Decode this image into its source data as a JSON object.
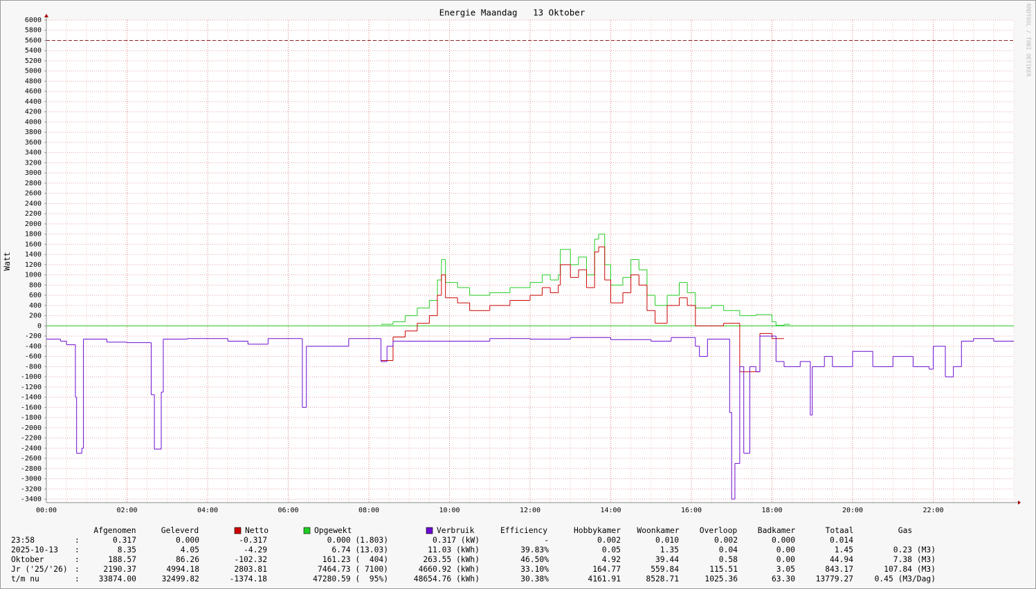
{
  "chart_data": {
    "type": "step",
    "title": "Energie Maandag   13 Oktober",
    "y_label": "Watt",
    "watermark": "RRDTOOL / TOBI OETIKER",
    "xlim": [
      0,
      24
    ],
    "xticks": [
      {
        "value": 0,
        "label": "00:00"
      },
      {
        "value": 2,
        "label": "02:00"
      },
      {
        "value": 4,
        "label": "04:00"
      },
      {
        "value": 6,
        "label": "06:00"
      },
      {
        "value": 8,
        "label": "08:00"
      },
      {
        "value": 10,
        "label": "10:00"
      },
      {
        "value": 12,
        "label": "12:00"
      },
      {
        "value": 14,
        "label": "14:00"
      },
      {
        "value": 16,
        "label": "16:00"
      },
      {
        "value": 18,
        "label": "18:00"
      },
      {
        "value": 20,
        "label": "20:00"
      },
      {
        "value": 22,
        "label": "22:00"
      }
    ],
    "ylim": [
      -3400,
      6000
    ],
    "yticks": [
      -3400,
      -3200,
      -3000,
      -2800,
      -2600,
      -2400,
      -2200,
      -2000,
      -1800,
      -1600,
      -1400,
      -1200,
      -1000,
      -800,
      -600,
      -400,
      -200,
      0,
      200,
      400,
      600,
      800,
      1000,
      1200,
      1400,
      1600,
      1800,
      2000,
      2200,
      2400,
      2600,
      2800,
      3000,
      3200,
      3400,
      3600,
      3800,
      4000,
      4200,
      4400,
      4600,
      4800,
      5000,
      5200,
      5400,
      5600,
      5800,
      6000
    ],
    "grid": true,
    "limit_line": 5600,
    "series": [
      {
        "name": "Netto",
        "color": "#cc0000",
        "x": [
          8.3,
          8.6,
          8.9,
          9.2,
          9.5,
          9.7,
          9.8,
          9.9,
          10.2,
          10.5,
          11,
          11.5,
          12,
          12.3,
          12.5,
          12.7,
          12.75,
          13.0,
          13.2,
          13.4,
          13.6,
          13.7,
          13.85,
          14.0,
          14.3,
          14.5,
          14.7,
          14.9,
          15.1,
          15.4,
          15.7,
          15.9,
          16.1,
          16.5,
          16.8,
          17.2,
          17.6,
          17.7,
          18.0,
          18.3
        ],
        "values": [
          -680,
          -220,
          -100,
          50,
          200,
          600,
          1000,
          550,
          450,
          300,
          400,
          500,
          600,
          750,
          650,
          800,
          1200,
          950,
          1100,
          750,
          1450,
          1550,
          900,
          450,
          650,
          1000,
          800,
          300,
          50,
          400,
          550,
          400,
          0,
          0,
          50,
          -900,
          -900,
          -150,
          -250,
          null
        ]
      },
      {
        "name": "Opgewekt",
        "color": "#22cc22",
        "x": [
          8.3,
          8.6,
          8.9,
          9.2,
          9.5,
          9.7,
          9.8,
          9.9,
          10.2,
          10.5,
          11,
          11.5,
          12,
          12.3,
          12.5,
          12.7,
          12.75,
          13.0,
          13.2,
          13.4,
          13.6,
          13.7,
          13.85,
          14.0,
          14.3,
          14.5,
          14.7,
          14.9,
          15.1,
          15.4,
          15.7,
          15.9,
          16.1,
          16.5,
          16.8,
          17.2,
          17.6,
          18.0,
          18.1,
          18.3,
          18.45
        ],
        "values": [
          30,
          80,
          200,
          350,
          500,
          900,
          1300,
          850,
          750,
          600,
          650,
          750,
          850,
          1000,
          900,
          1000,
          1500,
          1200,
          1350,
          1000,
          1700,
          1800,
          1200,
          800,
          950,
          1300,
          1100,
          600,
          400,
          600,
          850,
          650,
          350,
          400,
          300,
          200,
          220,
          80,
          10,
          30,
          null
        ]
      },
      {
        "name": "Verbruik",
        "color": "#6a0ad0",
        "x": [
          0,
          0.35,
          0.5,
          0.72,
          0.75,
          0.88,
          0.92,
          1.5,
          2.0,
          2.6,
          2.68,
          2.85,
          2.9,
          3.5,
          4.5,
          5.0,
          5.5,
          6.3,
          6.35,
          6.45,
          7.0,
          7.5,
          8.3,
          8.45,
          8.6,
          10,
          11,
          12,
          13,
          14,
          15,
          15.5,
          16.1,
          16.2,
          16.4,
          16.95,
          17.0,
          17.08,
          17.2,
          17.3,
          17.45,
          17.6,
          17.7,
          18.1,
          18.3,
          18.7,
          18.95,
          19.0,
          19.3,
          19.5,
          20,
          20.5,
          21,
          21.5,
          21.9,
          22.0,
          22.3,
          22.5,
          22.7,
          23,
          23.5
        ],
        "values": [
          -260,
          -300,
          -370,
          -1400,
          -2500,
          -2400,
          -260,
          -320,
          -330,
          -1350,
          -2420,
          -1300,
          -260,
          -250,
          -300,
          -360,
          -250,
          -250,
          -1600,
          -400,
          -400,
          -250,
          -700,
          -400,
          -300,
          -300,
          -250,
          -260,
          -230,
          -270,
          -300,
          -230,
          -400,
          -600,
          -260,
          -1700,
          -3400,
          -2700,
          -800,
          -2500,
          -800,
          -900,
          -200,
          -700,
          -800,
          -700,
          -1750,
          -800,
          -600,
          -800,
          -500,
          -800,
          -600,
          -800,
          -850,
          -400,
          -1000,
          -800,
          -300,
          -250,
          -300
        ]
      }
    ]
  },
  "table": {
    "headers": [
      "Afgenomen",
      "Geleverd",
      "Efficiency",
      "Hobbykamer",
      "Woonkamer",
      "Overloop",
      "Badkamer",
      "Totaal",
      "Gas"
    ],
    "separator": ":",
    "rows": [
      {
        "label": "23:58",
        "cells": [
          "0.317",
          "0.000",
          "-0.317",
          "0.000 (1.803)",
          "0.317 (kW)",
          "-",
          "0.002",
          "0.010",
          "0.002",
          "0.000",
          "0.014",
          null
        ]
      },
      {
        "label": "2025-10-13",
        "cells": [
          "8.35",
          "4.05",
          "-4.29",
          "6.74 (13.03)",
          "11.03 (kWh)",
          "39.83%",
          "0.05",
          "1.35",
          "0.04",
          "0.00",
          "1.45",
          "0.23 (M3)"
        ]
      },
      {
        "label": "Oktober",
        "cells": [
          "188.57",
          "86.26",
          "-102.32",
          "161.23 (  404)",
          "263.55 (kWh)",
          "46.50%",
          "4.92",
          "39.44",
          "0.58",
          "0.00",
          "44.94",
          "7.38 (M3)"
        ]
      },
      {
        "label": "Jr ('25/'26)",
        "cells": [
          "2190.37",
          "4994.18",
          "2803.81",
          "7464.73 ( 7100)",
          "4660.92 (kWh)",
          "33.10%",
          "164.77",
          "559.84",
          "115.51",
          "3.05",
          "843.17",
          "107.84 (M3)"
        ]
      },
      {
        "label": "t/m nu",
        "cells": [
          "33874.00",
          "32499.82",
          "-1374.18",
          "47280.59 (  95%)",
          "48654.76 (kWh)",
          "30.38%",
          "4161.91",
          "8528.71",
          "1025.36",
          "63.30",
          "13779.27",
          "0.45 (M3/Dag)"
        ]
      }
    ]
  }
}
